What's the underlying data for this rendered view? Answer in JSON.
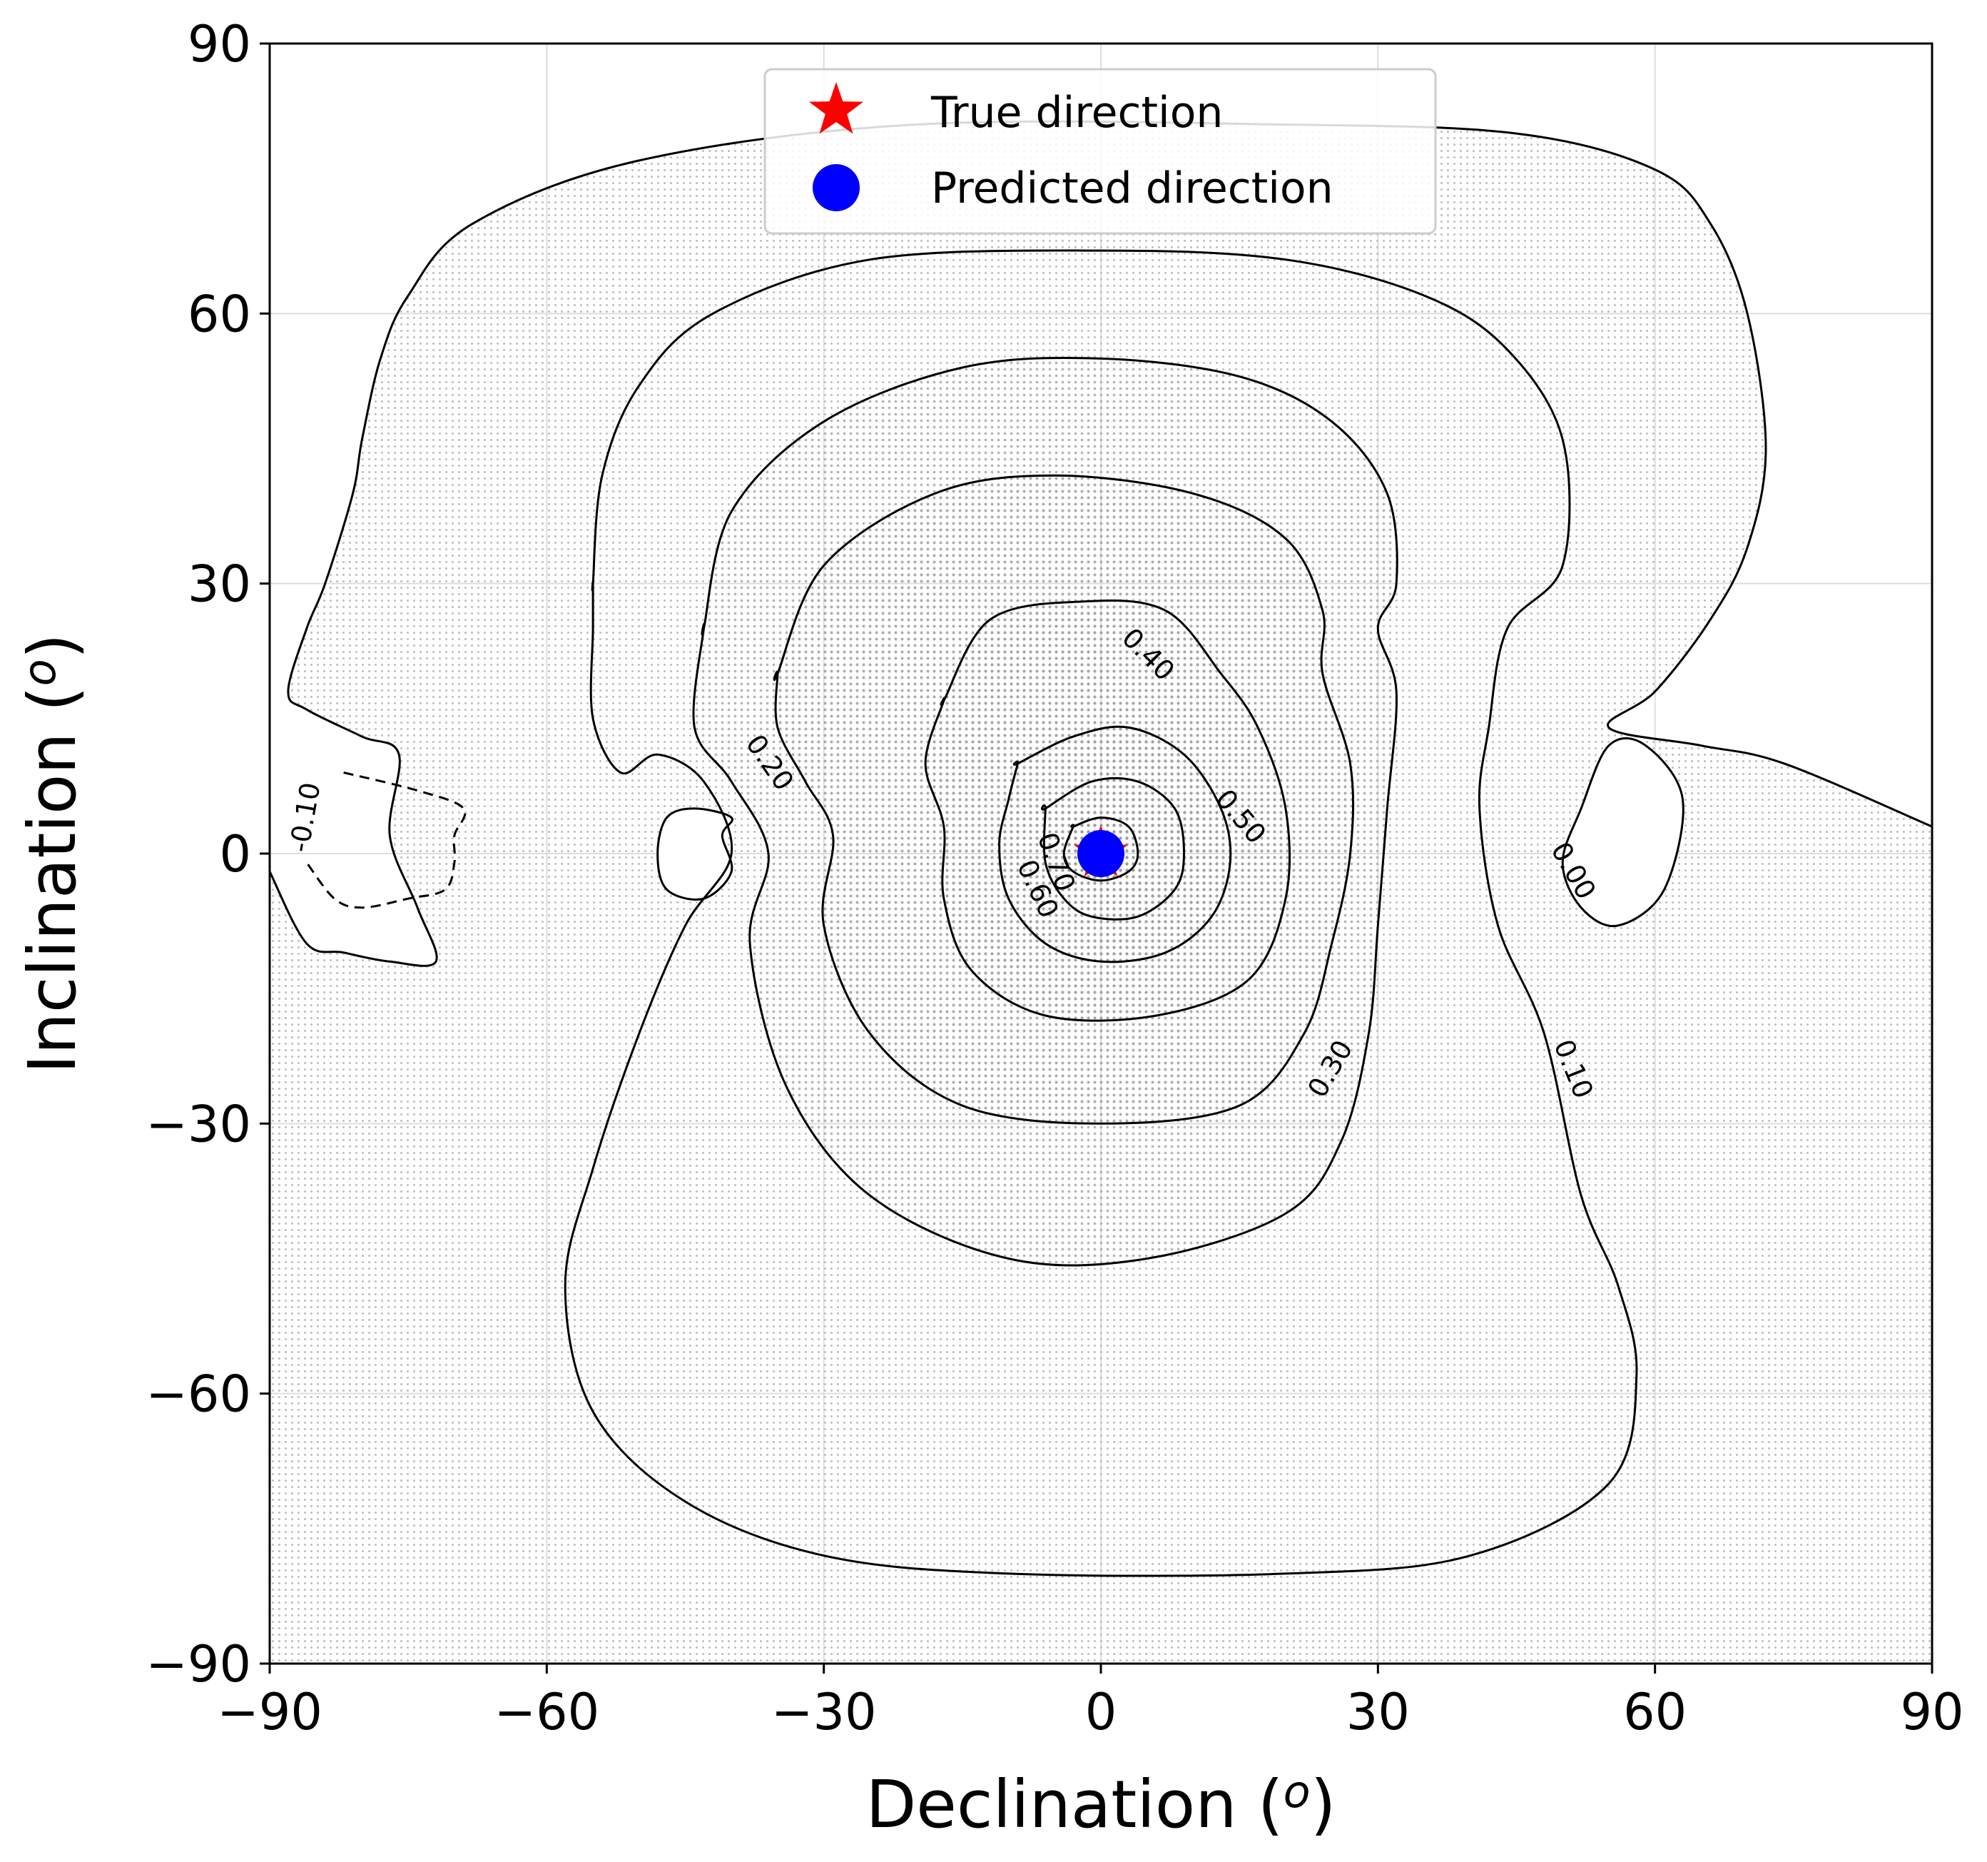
{
  "chart_data": {
    "type": "contour",
    "title": "",
    "xlabel": "Declination",
    "xlabel_unit": "o",
    "ylabel": "Inclination",
    "ylabel_unit": "o",
    "xlim": [
      -90,
      90
    ],
    "ylim": [
      -90,
      90
    ],
    "xticks": [
      -90,
      -60,
      -30,
      0,
      30,
      60,
      90
    ],
    "yticks": [
      -90,
      -60,
      -30,
      0,
      30,
      60,
      90
    ],
    "xtick_labels": [
      "−90",
      "−60",
      "−30",
      "0",
      "30",
      "60",
      "90"
    ],
    "ytick_labels": [
      "−90",
      "−60",
      "−30",
      "0",
      "30",
      "60",
      "90"
    ],
    "grid": true,
    "legend": {
      "placement": "upper-center",
      "entries": [
        {
          "label": "True direction",
          "marker": "star",
          "color": "#ff0000"
        },
        {
          "label": "Predicted direction",
          "marker": "circle",
          "color": "#0000ff"
        }
      ]
    },
    "true_direction": {
      "declination": 0,
      "inclination": 0
    },
    "predicted_direction": {
      "declination": 0,
      "inclination": 0
    },
    "contour_levels": [
      {
        "level": -0.1,
        "label": "-0.10",
        "style": "dashed",
        "paths": [
          [
            [
              -82,
              9
            ],
            [
              -74,
              7
            ],
            [
              -69,
              5
            ],
            [
              -70,
              2
            ],
            [
              -70,
              -1
            ],
            [
              -71,
              -4
            ],
            [
              -75,
              -5
            ],
            [
              -80,
              -6
            ],
            [
              -83,
              -5
            ],
            [
              -86,
              -1
            ]
          ]
        ]
      },
      {
        "level": 0.0,
        "label": "0.00",
        "style": "solid",
        "paths": [
          [
            [
              -90,
              -2
            ],
            [
              -86,
              -10
            ],
            [
              -82,
              -11
            ],
            [
              -77,
              -12
            ],
            [
              -72,
              -12
            ],
            [
              -74,
              -6
            ],
            [
              -77,
              2
            ],
            [
              -76,
              11
            ],
            [
              -80,
              13
            ],
            [
              -86,
              16
            ],
            [
              -88,
              18
            ],
            [
              -86,
              25
            ],
            [
              -84,
              30
            ],
            [
              -81,
              40
            ],
            [
              -80,
              46
            ],
            [
              -78,
              55
            ],
            [
              -75,
              62
            ],
            [
              -68,
              70
            ],
            [
              -50,
              77
            ],
            [
              -20,
              81
            ],
            [
              20,
              81
            ],
            [
              45,
              80
            ],
            [
              60,
              76
            ],
            [
              66,
              70
            ],
            [
              70,
              60
            ],
            [
              72,
              45
            ],
            [
              70,
              34
            ],
            [
              66,
              26
            ],
            [
              60,
              18
            ],
            [
              55,
              14
            ],
            [
              65,
              12
            ],
            [
              74,
              10
            ],
            [
              90,
              3
            ]
          ],
          [
            [
              -41,
              2
            ],
            [
              -40,
              4
            ],
            [
              -44,
              5
            ],
            [
              -47,
              4
            ],
            [
              -48,
              0
            ],
            [
              -47,
              -4
            ],
            [
              -43,
              -5
            ],
            [
              -40,
              -2
            ]
          ],
          [
            [
              52,
              5
            ],
            [
              55,
              12
            ],
            [
              59,
              12
            ],
            [
              63,
              6
            ],
            [
              61,
              -4
            ],
            [
              56,
              -8
            ],
            [
              52,
              -6
            ],
            [
              50,
              -1
            ]
          ]
        ]
      },
      {
        "level": 0.1,
        "label": "0.10",
        "style": "solid",
        "paths": [
          [
            [
              -55,
              30
            ],
            [
              -54,
              42
            ],
            [
              -50,
              52
            ],
            [
              -42,
              60
            ],
            [
              -25,
              66
            ],
            [
              0,
              67
            ],
            [
              20,
              66
            ],
            [
              35,
              62
            ],
            [
              44,
              56
            ],
            [
              50,
              46
            ],
            [
              50,
              32
            ],
            [
              44,
              25
            ],
            [
              42,
              14
            ],
            [
              41,
              5
            ],
            [
              43,
              -8
            ],
            [
              48,
              -20
            ],
            [
              52,
              -38
            ],
            [
              56,
              -48
            ],
            [
              58,
              -58
            ],
            [
              55,
              -70
            ],
            [
              40,
              -78
            ],
            [
              20,
              -80
            ],
            [
              -10,
              -80
            ],
            [
              -30,
              -78
            ],
            [
              -45,
              -72
            ],
            [
              -55,
              -62
            ],
            [
              -58,
              -48
            ],
            [
              -55,
              -35
            ],
            [
              -50,
              -20
            ],
            [
              -45,
              -8
            ],
            [
              -40,
              0
            ],
            [
              -43,
              8
            ],
            [
              -48,
              11
            ],
            [
              -52,
              9
            ],
            [
              -55,
              15
            ],
            [
              -55,
              25
            ],
            [
              -55,
              30
            ]
          ]
        ]
      },
      {
        "level": 0.2,
        "label": "0.20",
        "style": "solid",
        "paths": [
          [
            [
              -43,
              25
            ],
            [
              -40,
              38
            ],
            [
              -30,
              48
            ],
            [
              -15,
              54
            ],
            [
              0,
              55
            ],
            [
              15,
              53
            ],
            [
              25,
              48
            ],
            [
              31,
              40
            ],
            [
              32,
              30
            ],
            [
              30,
              25
            ],
            [
              32,
              18
            ],
            [
              31,
              5
            ],
            [
              30,
              -8
            ],
            [
              29,
              -20
            ],
            [
              26,
              -32
            ],
            [
              20,
              -40
            ],
            [
              5,
              -45
            ],
            [
              -10,
              -45
            ],
            [
              -25,
              -38
            ],
            [
              -34,
              -26
            ],
            [
              -38,
              -10
            ],
            [
              -36,
              0
            ],
            [
              -40,
              8
            ],
            [
              -44,
              14
            ],
            [
              -43,
              25
            ]
          ]
        ]
      },
      {
        "level": 0.3,
        "label": "0.30",
        "style": "solid",
        "paths": [
          [
            [
              -35,
              20
            ],
            [
              -30,
              32
            ],
            [
              -18,
              40
            ],
            [
              -5,
              42
            ],
            [
              10,
              40
            ],
            [
              20,
              35
            ],
            [
              24,
              27
            ],
            [
              24,
              20
            ],
            [
              27,
              10
            ],
            [
              27,
              0
            ],
            [
              25,
              -10
            ],
            [
              22,
              -20
            ],
            [
              15,
              -28
            ],
            [
              0,
              -30
            ],
            [
              -15,
              -28
            ],
            [
              -25,
              -20
            ],
            [
              -30,
              -8
            ],
            [
              -29,
              2
            ],
            [
              -32,
              8
            ],
            [
              -35,
              14
            ],
            [
              -35,
              20
            ]
          ]
        ]
      },
      {
        "level": 0.4,
        "label": "0.40",
        "style": "solid",
        "paths": [
          [
            [
              -17,
              17
            ],
            [
              -12,
              26
            ],
            [
              -2,
              28
            ],
            [
              7,
              27
            ],
            [
              13,
              20
            ],
            [
              17,
              14
            ],
            [
              20,
              5
            ],
            [
              20,
              -5
            ],
            [
              16,
              -14
            ],
            [
              6,
              -18
            ],
            [
              -6,
              -18
            ],
            [
              -14,
              -13
            ],
            [
              -17,
              -5
            ],
            [
              -17,
              3
            ],
            [
              -19,
              10
            ],
            [
              -17,
              17
            ]
          ]
        ]
      },
      {
        "level": 0.5,
        "label": "0.50",
        "style": "solid",
        "paths": [
          [
            [
              -9,
              10
            ],
            [
              -3,
              13
            ],
            [
              3,
              14
            ],
            [
              9,
              11
            ],
            [
              13,
              5
            ],
            [
              14,
              -1
            ],
            [
              12,
              -7
            ],
            [
              7,
              -11
            ],
            [
              0,
              -12
            ],
            [
              -6,
              -10
            ],
            [
              -10,
              -5
            ],
            [
              -11,
              1
            ],
            [
              -10,
              6
            ],
            [
              -9,
              10
            ]
          ]
        ]
      },
      {
        "level": 0.6,
        "label": "0.60",
        "style": "solid",
        "paths": [
          [
            [
              -6,
              5
            ],
            [
              -1,
              8
            ],
            [
              4,
              8
            ],
            [
              8,
              5
            ],
            [
              9,
              0
            ],
            [
              8,
              -4
            ],
            [
              4,
              -7
            ],
            [
              -1,
              -7
            ],
            [
              -4,
              -5
            ],
            [
              -6,
              -1
            ],
            [
              -6,
              5
            ]
          ]
        ]
      },
      {
        "level": 0.7,
        "label": "0.70",
        "style": "solid",
        "paths": [
          [
            [
              -3,
              3
            ],
            [
              0,
              4
            ],
            [
              3,
              3
            ],
            [
              4,
              0
            ],
            [
              3,
              -2
            ],
            [
              0,
              -3
            ],
            [
              -3,
              -2
            ],
            [
              -4,
              0
            ],
            [
              -3,
              3
            ]
          ]
        ]
      }
    ],
    "contour_label_positions": [
      {
        "label": "-0.10",
        "x": -86,
        "y": 4,
        "rotation": -80
      },
      {
        "label": "0.00",
        "x": 51,
        "y": -2,
        "rotation": 60
      },
      {
        "label": "0.10",
        "x": 51,
        "y": -24,
        "rotation": 68
      },
      {
        "label": "0.20",
        "x": -36,
        "y": 10,
        "rotation": 55
      },
      {
        "label": "0.30",
        "x": 25,
        "y": -24,
        "rotation": -60
      },
      {
        "label": "0.40",
        "x": 5,
        "y": 22,
        "rotation": 45
      },
      {
        "label": "0.50",
        "x": 15,
        "y": 4,
        "rotation": 50
      },
      {
        "label": "0.60",
        "x": -7,
        "y": -4,
        "rotation": 65
      },
      {
        "label": "0.70",
        "x": -5,
        "y": -1,
        "rotation": 70
      }
    ]
  }
}
